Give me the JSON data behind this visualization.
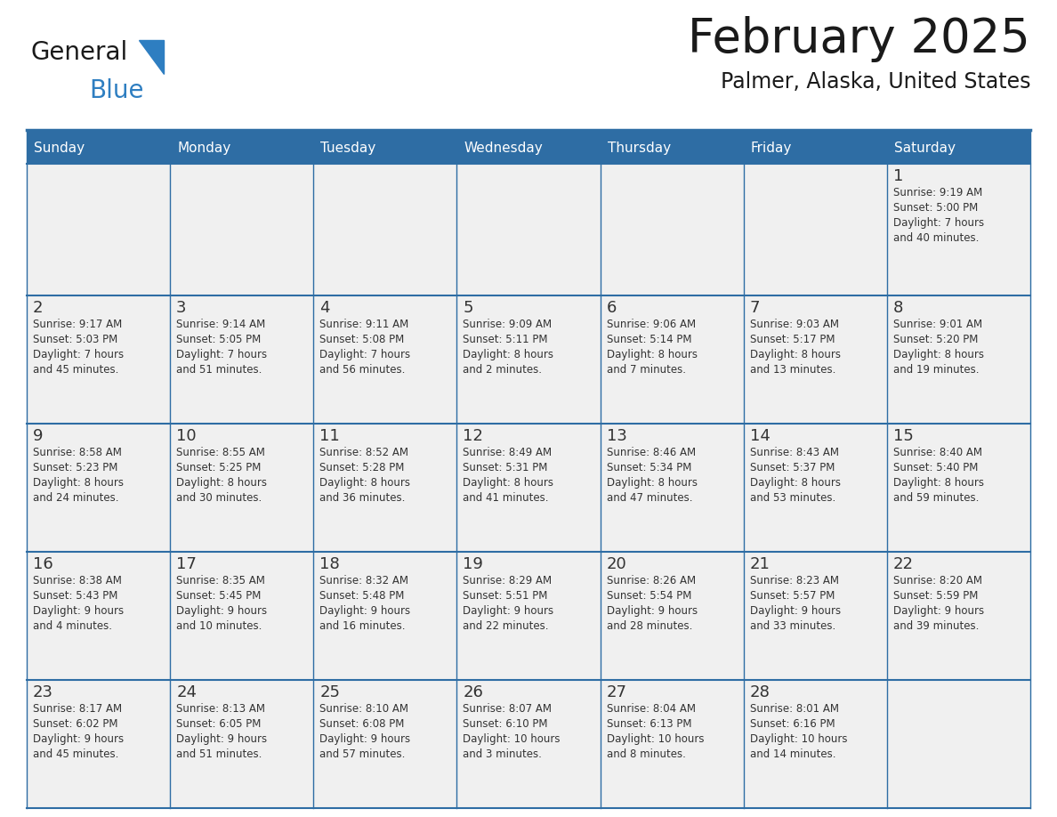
{
  "title": "February 2025",
  "subtitle": "Palmer, Alaska, United States",
  "header_bg": "#2E6DA4",
  "header_text_color": "#FFFFFF",
  "cell_bg": "#F0F0F0",
  "day_number_color": "#333333",
  "info_text_color": "#333333",
  "border_color": "#2E6DA4",
  "days_of_week": [
    "Sunday",
    "Monday",
    "Tuesday",
    "Wednesday",
    "Thursday",
    "Friday",
    "Saturday"
  ],
  "weeks": [
    [
      {
        "day": null,
        "info": ""
      },
      {
        "day": null,
        "info": ""
      },
      {
        "day": null,
        "info": ""
      },
      {
        "day": null,
        "info": ""
      },
      {
        "day": null,
        "info": ""
      },
      {
        "day": null,
        "info": ""
      },
      {
        "day": 1,
        "info": "Sunrise: 9:19 AM\nSunset: 5:00 PM\nDaylight: 7 hours\nand 40 minutes."
      }
    ],
    [
      {
        "day": 2,
        "info": "Sunrise: 9:17 AM\nSunset: 5:03 PM\nDaylight: 7 hours\nand 45 minutes."
      },
      {
        "day": 3,
        "info": "Sunrise: 9:14 AM\nSunset: 5:05 PM\nDaylight: 7 hours\nand 51 minutes."
      },
      {
        "day": 4,
        "info": "Sunrise: 9:11 AM\nSunset: 5:08 PM\nDaylight: 7 hours\nand 56 minutes."
      },
      {
        "day": 5,
        "info": "Sunrise: 9:09 AM\nSunset: 5:11 PM\nDaylight: 8 hours\nand 2 minutes."
      },
      {
        "day": 6,
        "info": "Sunrise: 9:06 AM\nSunset: 5:14 PM\nDaylight: 8 hours\nand 7 minutes."
      },
      {
        "day": 7,
        "info": "Sunrise: 9:03 AM\nSunset: 5:17 PM\nDaylight: 8 hours\nand 13 minutes."
      },
      {
        "day": 8,
        "info": "Sunrise: 9:01 AM\nSunset: 5:20 PM\nDaylight: 8 hours\nand 19 minutes."
      }
    ],
    [
      {
        "day": 9,
        "info": "Sunrise: 8:58 AM\nSunset: 5:23 PM\nDaylight: 8 hours\nand 24 minutes."
      },
      {
        "day": 10,
        "info": "Sunrise: 8:55 AM\nSunset: 5:25 PM\nDaylight: 8 hours\nand 30 minutes."
      },
      {
        "day": 11,
        "info": "Sunrise: 8:52 AM\nSunset: 5:28 PM\nDaylight: 8 hours\nand 36 minutes."
      },
      {
        "day": 12,
        "info": "Sunrise: 8:49 AM\nSunset: 5:31 PM\nDaylight: 8 hours\nand 41 minutes."
      },
      {
        "day": 13,
        "info": "Sunrise: 8:46 AM\nSunset: 5:34 PM\nDaylight: 8 hours\nand 47 minutes."
      },
      {
        "day": 14,
        "info": "Sunrise: 8:43 AM\nSunset: 5:37 PM\nDaylight: 8 hours\nand 53 minutes."
      },
      {
        "day": 15,
        "info": "Sunrise: 8:40 AM\nSunset: 5:40 PM\nDaylight: 8 hours\nand 59 minutes."
      }
    ],
    [
      {
        "day": 16,
        "info": "Sunrise: 8:38 AM\nSunset: 5:43 PM\nDaylight: 9 hours\nand 4 minutes."
      },
      {
        "day": 17,
        "info": "Sunrise: 8:35 AM\nSunset: 5:45 PM\nDaylight: 9 hours\nand 10 minutes."
      },
      {
        "day": 18,
        "info": "Sunrise: 8:32 AM\nSunset: 5:48 PM\nDaylight: 9 hours\nand 16 minutes."
      },
      {
        "day": 19,
        "info": "Sunrise: 8:29 AM\nSunset: 5:51 PM\nDaylight: 9 hours\nand 22 minutes."
      },
      {
        "day": 20,
        "info": "Sunrise: 8:26 AM\nSunset: 5:54 PM\nDaylight: 9 hours\nand 28 minutes."
      },
      {
        "day": 21,
        "info": "Sunrise: 8:23 AM\nSunset: 5:57 PM\nDaylight: 9 hours\nand 33 minutes."
      },
      {
        "day": 22,
        "info": "Sunrise: 8:20 AM\nSunset: 5:59 PM\nDaylight: 9 hours\nand 39 minutes."
      }
    ],
    [
      {
        "day": 23,
        "info": "Sunrise: 8:17 AM\nSunset: 6:02 PM\nDaylight: 9 hours\nand 45 minutes."
      },
      {
        "day": 24,
        "info": "Sunrise: 8:13 AM\nSunset: 6:05 PM\nDaylight: 9 hours\nand 51 minutes."
      },
      {
        "day": 25,
        "info": "Sunrise: 8:10 AM\nSunset: 6:08 PM\nDaylight: 9 hours\nand 57 minutes."
      },
      {
        "day": 26,
        "info": "Sunrise: 8:07 AM\nSunset: 6:10 PM\nDaylight: 10 hours\nand 3 minutes."
      },
      {
        "day": 27,
        "info": "Sunrise: 8:04 AM\nSunset: 6:13 PM\nDaylight: 10 hours\nand 8 minutes."
      },
      {
        "day": 28,
        "info": "Sunrise: 8:01 AM\nSunset: 6:16 PM\nDaylight: 10 hours\nand 14 minutes."
      },
      {
        "day": null,
        "info": ""
      }
    ]
  ],
  "logo_text1": "General",
  "logo_text2": "Blue",
  "logo_text1_color": "#1a1a1a",
  "logo_text2_color": "#2E7EC1",
  "logo_triangle_color": "#2E7EC1",
  "title_color": "#1a1a1a",
  "subtitle_color": "#1a1a1a"
}
